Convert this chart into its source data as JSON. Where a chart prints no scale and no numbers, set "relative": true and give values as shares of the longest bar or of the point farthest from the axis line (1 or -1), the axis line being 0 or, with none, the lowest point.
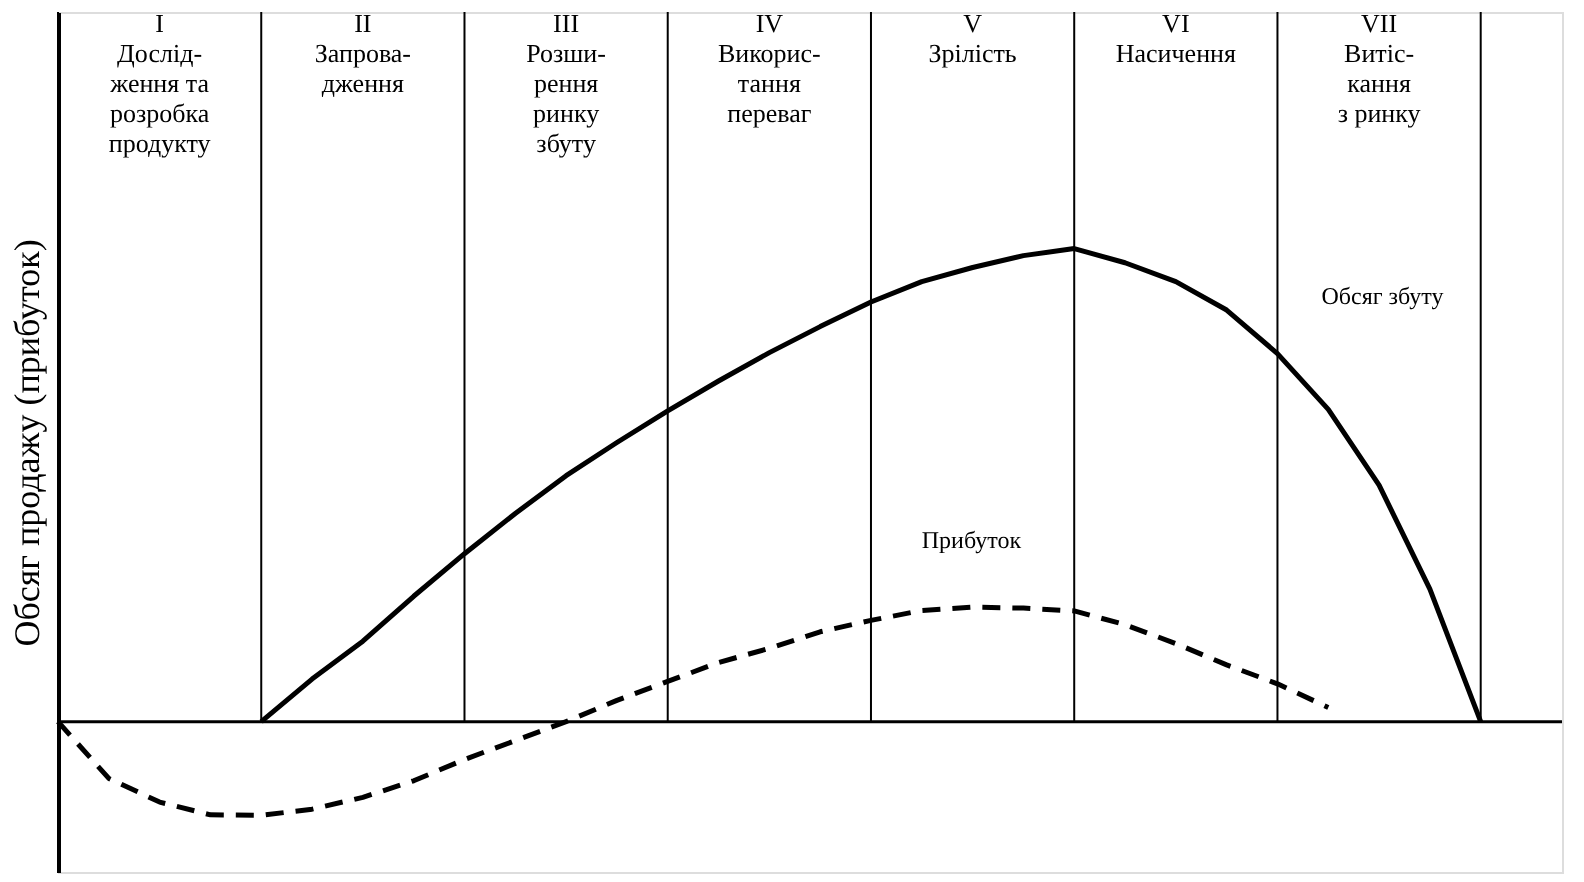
{
  "chart_data": {
    "type": "line",
    "relative": true,
    "ylabel": "Обсяг продажу (прибуток)",
    "marker": "none",
    "grid": "x",
    "categories": [
      null,
      null,
      null,
      null,
      null,
      null,
      null,
      null,
      null,
      null,
      null,
      null,
      null,
      null,
      null,
      null,
      null,
      null,
      null,
      null,
      null,
      null,
      null,
      null,
      null,
      null,
      null,
      null,
      null,
      null
    ],
    "series": [
      {
        "name": "Обсяг збуту",
        "color": "#000000",
        "line_style": "solid",
        "values": [
          null,
          null,
          null,
          null,
          0,
          0.09,
          0.17,
          0.265,
          0.355,
          0.44,
          0.52,
          0.59,
          0.657,
          0.72,
          0.78,
          0.835,
          0.887,
          0.93,
          0.96,
          0.985,
          1.0,
          0.97,
          0.93,
          0.87,
          0.778,
          0.66,
          0.5,
          0.28,
          0,
          null
        ]
      },
      {
        "name": "Прибуток",
        "color": "#000000",
        "line_style": "dashed",
        "values": [
          0,
          -0.12,
          -0.17,
          -0.197,
          -0.198,
          -0.185,
          -0.16,
          -0.125,
          -0.08,
          -0.04,
          0,
          0.045,
          0.085,
          0.125,
          0.155,
          0.19,
          0.214,
          0.235,
          0.242,
          0.24,
          0.234,
          0.205,
          0.165,
          0.12,
          0.08,
          0.03,
          null,
          null,
          null,
          null
        ]
      }
    ],
    "annotations": [
      "I\n\nДослід-\nження та\nрозробка\nпродукту",
      "II\n\nЗапрова-\nдження",
      "III\n\nРозши-\nрення\nринку\nзбуту",
      "IV\n\nВикорис-\nтання\nпереваг",
      "V\n\nЗрілість",
      "VI\n\nНасичення",
      "VII\n\nВитіс-\nкання\nз ринку"
    ]
  }
}
